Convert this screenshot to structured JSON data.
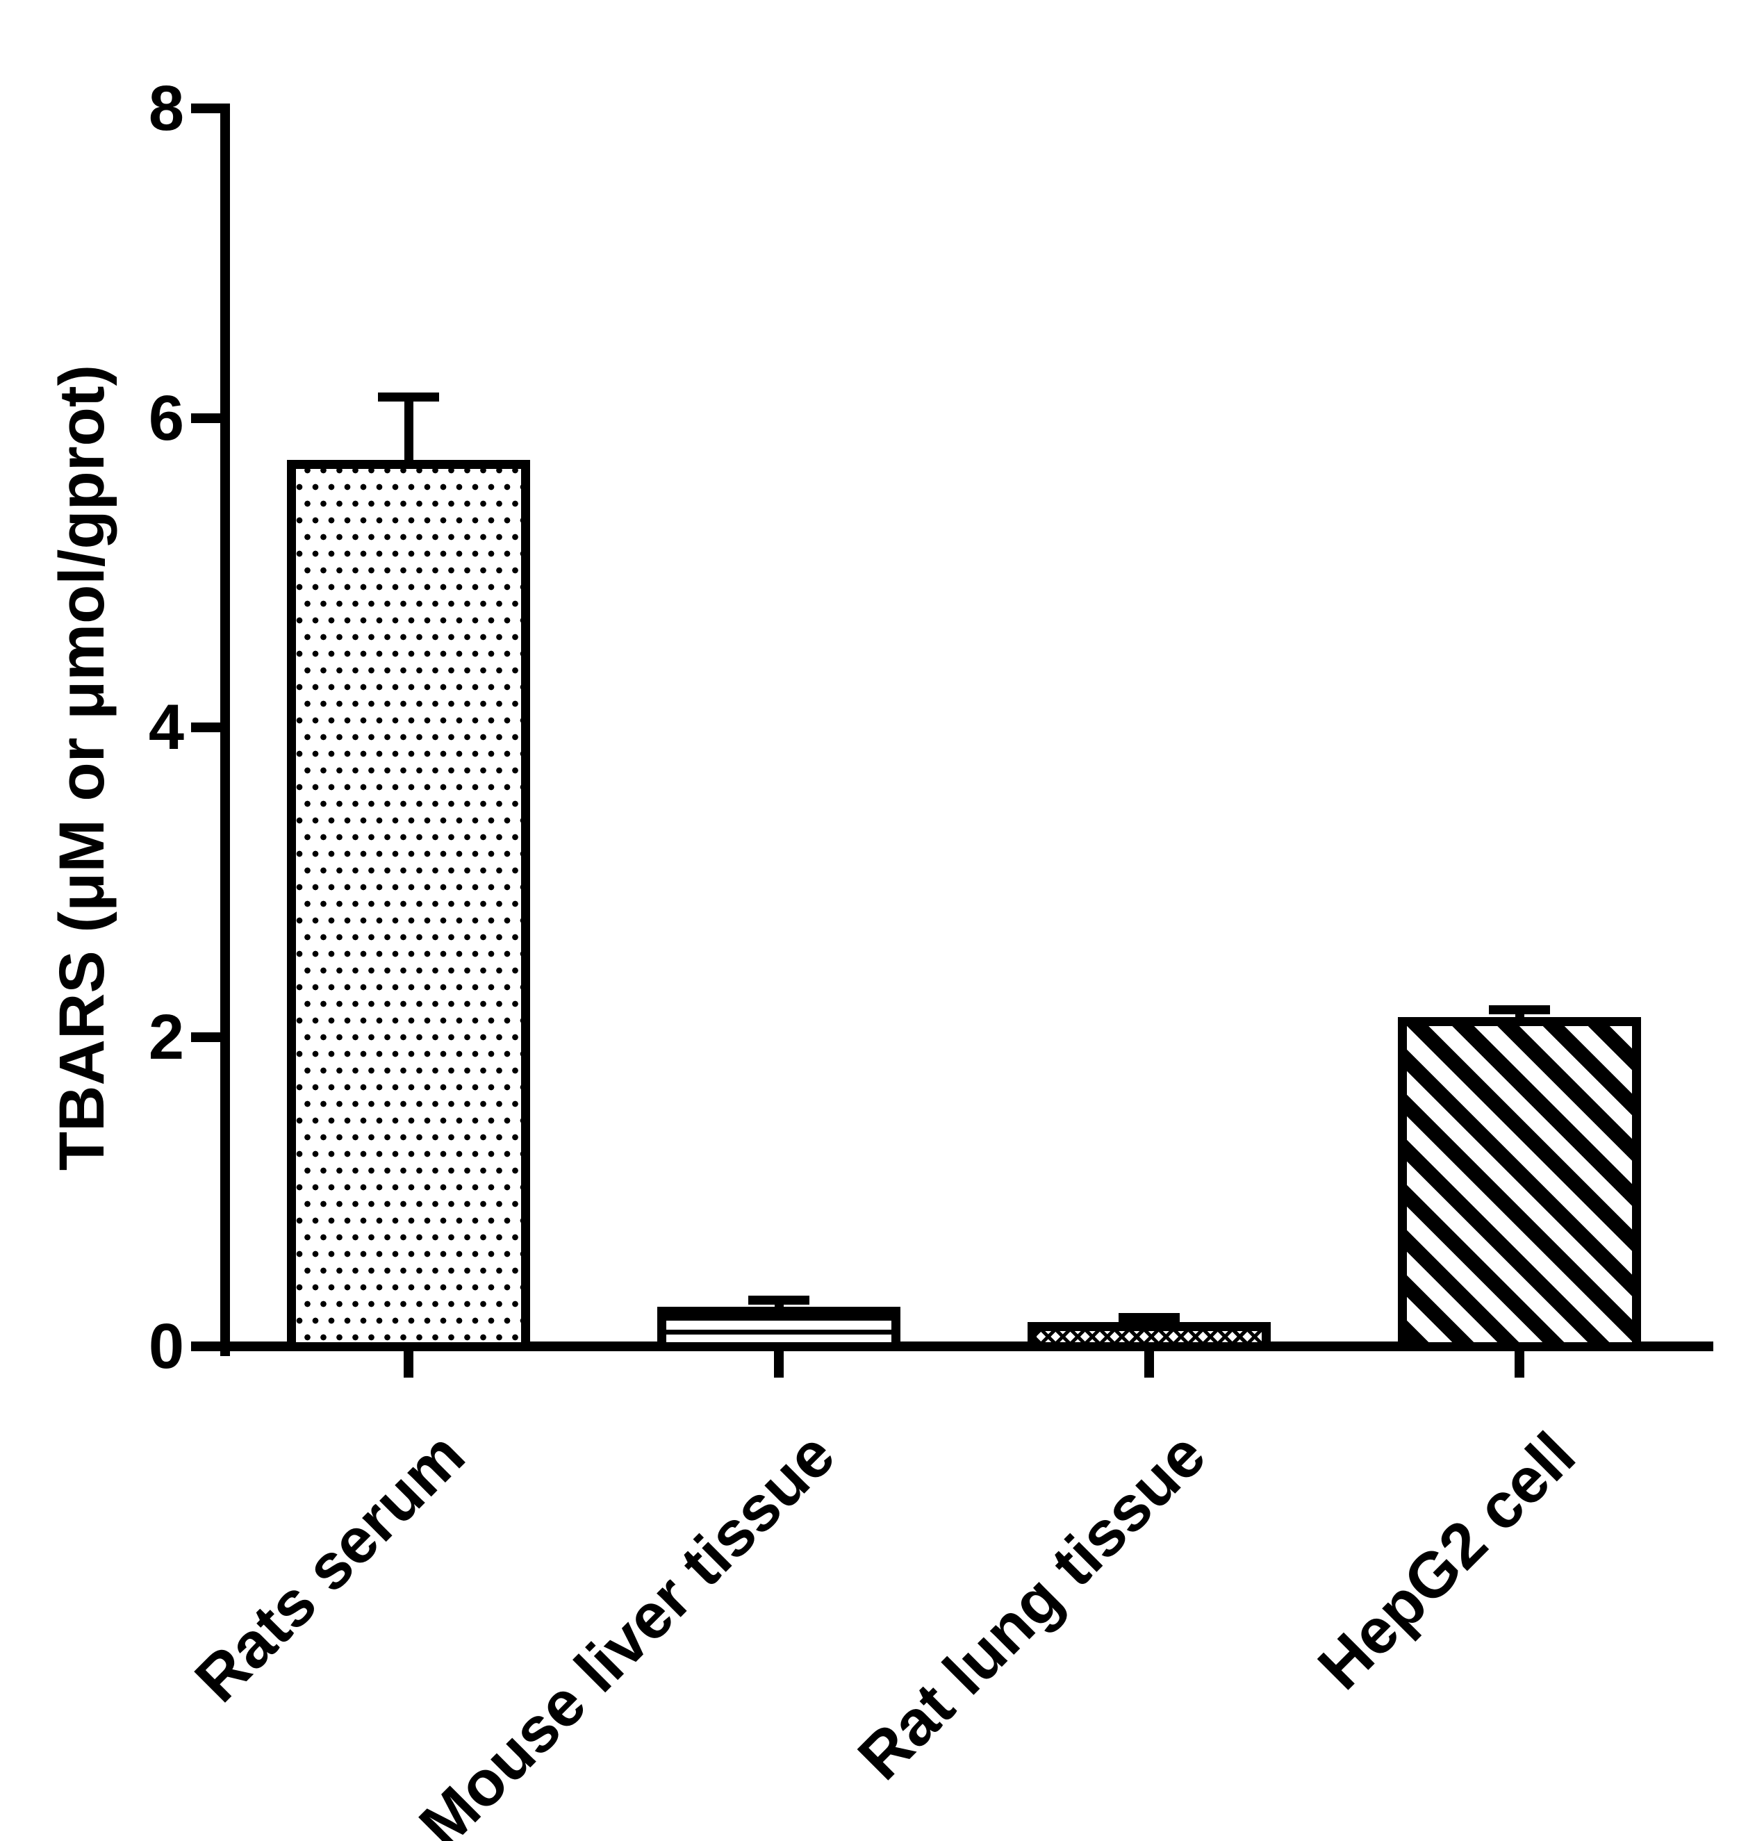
{
  "figure": {
    "background": "#ffffff",
    "ink": "#000000"
  },
  "chart_data": {
    "type": "bar",
    "title": "",
    "xlabel": "",
    "ylabel": "TBARS (μM or μmol/gprot)",
    "ylim": [
      0,
      8
    ],
    "yticks": [
      0,
      2,
      4,
      6,
      8
    ],
    "grid": false,
    "legend_position": "none",
    "bar_fill": "#ffffff",
    "bar_edge": "#000000",
    "categories": [
      "Rats serum",
      "Mouse liver tissue",
      "Rat lung tissue",
      "HepG2 cell"
    ],
    "values": [
      5.74,
      0.27,
      0.17,
      2.14
    ],
    "errors": [
      0.41,
      0.04,
      0.03,
      0.05
    ],
    "error_style": "upper cap only",
    "patterns": [
      "dots",
      "horizontal-lines",
      "crosshatch",
      "diagonal-stripes"
    ]
  }
}
